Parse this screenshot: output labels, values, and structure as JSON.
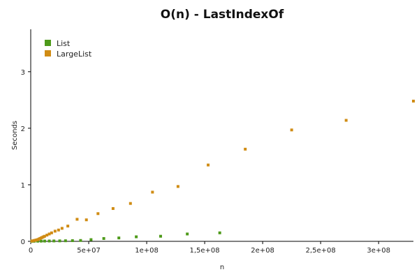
{
  "chart_data": {
    "type": "scatter",
    "title": "O(n) - LastIndexOf",
    "xlabel": "n",
    "ylabel": "Seconds",
    "xlim": [
      0,
      330000000
    ],
    "ylim": [
      0,
      3.75
    ],
    "xticks": [
      0,
      50000000,
      100000000,
      150000000,
      200000000,
      250000000,
      300000000
    ],
    "xtick_labels": [
      "0",
      "5e+07",
      "1e+08",
      "1,5e+08",
      "2e+08",
      "2,5e+08",
      "3e+08"
    ],
    "yticks": [
      0,
      1,
      2,
      3
    ],
    "ytick_labels": [
      "0",
      "1",
      "2",
      "3"
    ],
    "legend_position": "top-left",
    "series": [
      {
        "name": "List",
        "color": "#4e9a1a",
        "x": [
          1000000,
          3000000,
          6000000,
          9000000,
          12000000,
          16000000,
          20000000,
          25000000,
          30000000,
          36000000,
          43000000,
          52000000,
          63000000,
          76000000,
          91000000,
          112000000,
          135000000,
          163000000
        ],
        "y": [
          0.001,
          0.002,
          0.003,
          0.004,
          0.005,
          0.006,
          0.007,
          0.008,
          0.01,
          0.012,
          0.015,
          0.03,
          0.05,
          0.06,
          0.08,
          0.09,
          0.13,
          0.15
        ]
      },
      {
        "name": "LargeList",
        "color": "#d08c14",
        "x": [
          1000000,
          2000000,
          3000000,
          4000000,
          5000000,
          6000000,
          7000000,
          8000000,
          9000000,
          10000000,
          11000000,
          12000000,
          14000000,
          16000000,
          18000000,
          21000000,
          24000000,
          27000000,
          32000000,
          40000000,
          48000000,
          58000000,
          71000000,
          86000000,
          105000000,
          127000000,
          153000000,
          185000000,
          225000000,
          272000000,
          330000000
        ],
        "y": [
          0.005,
          0.01,
          0.015,
          0.02,
          0.025,
          0.03,
          0.04,
          0.05,
          0.06,
          0.07,
          0.08,
          0.09,
          0.11,
          0.13,
          0.15,
          0.18,
          0.2,
          0.23,
          0.27,
          0.39,
          0.38,
          0.49,
          0.58,
          0.67,
          0.87,
          0.97,
          1.35,
          1.63,
          1.97,
          2.14,
          2.48
        ]
      }
    ]
  }
}
